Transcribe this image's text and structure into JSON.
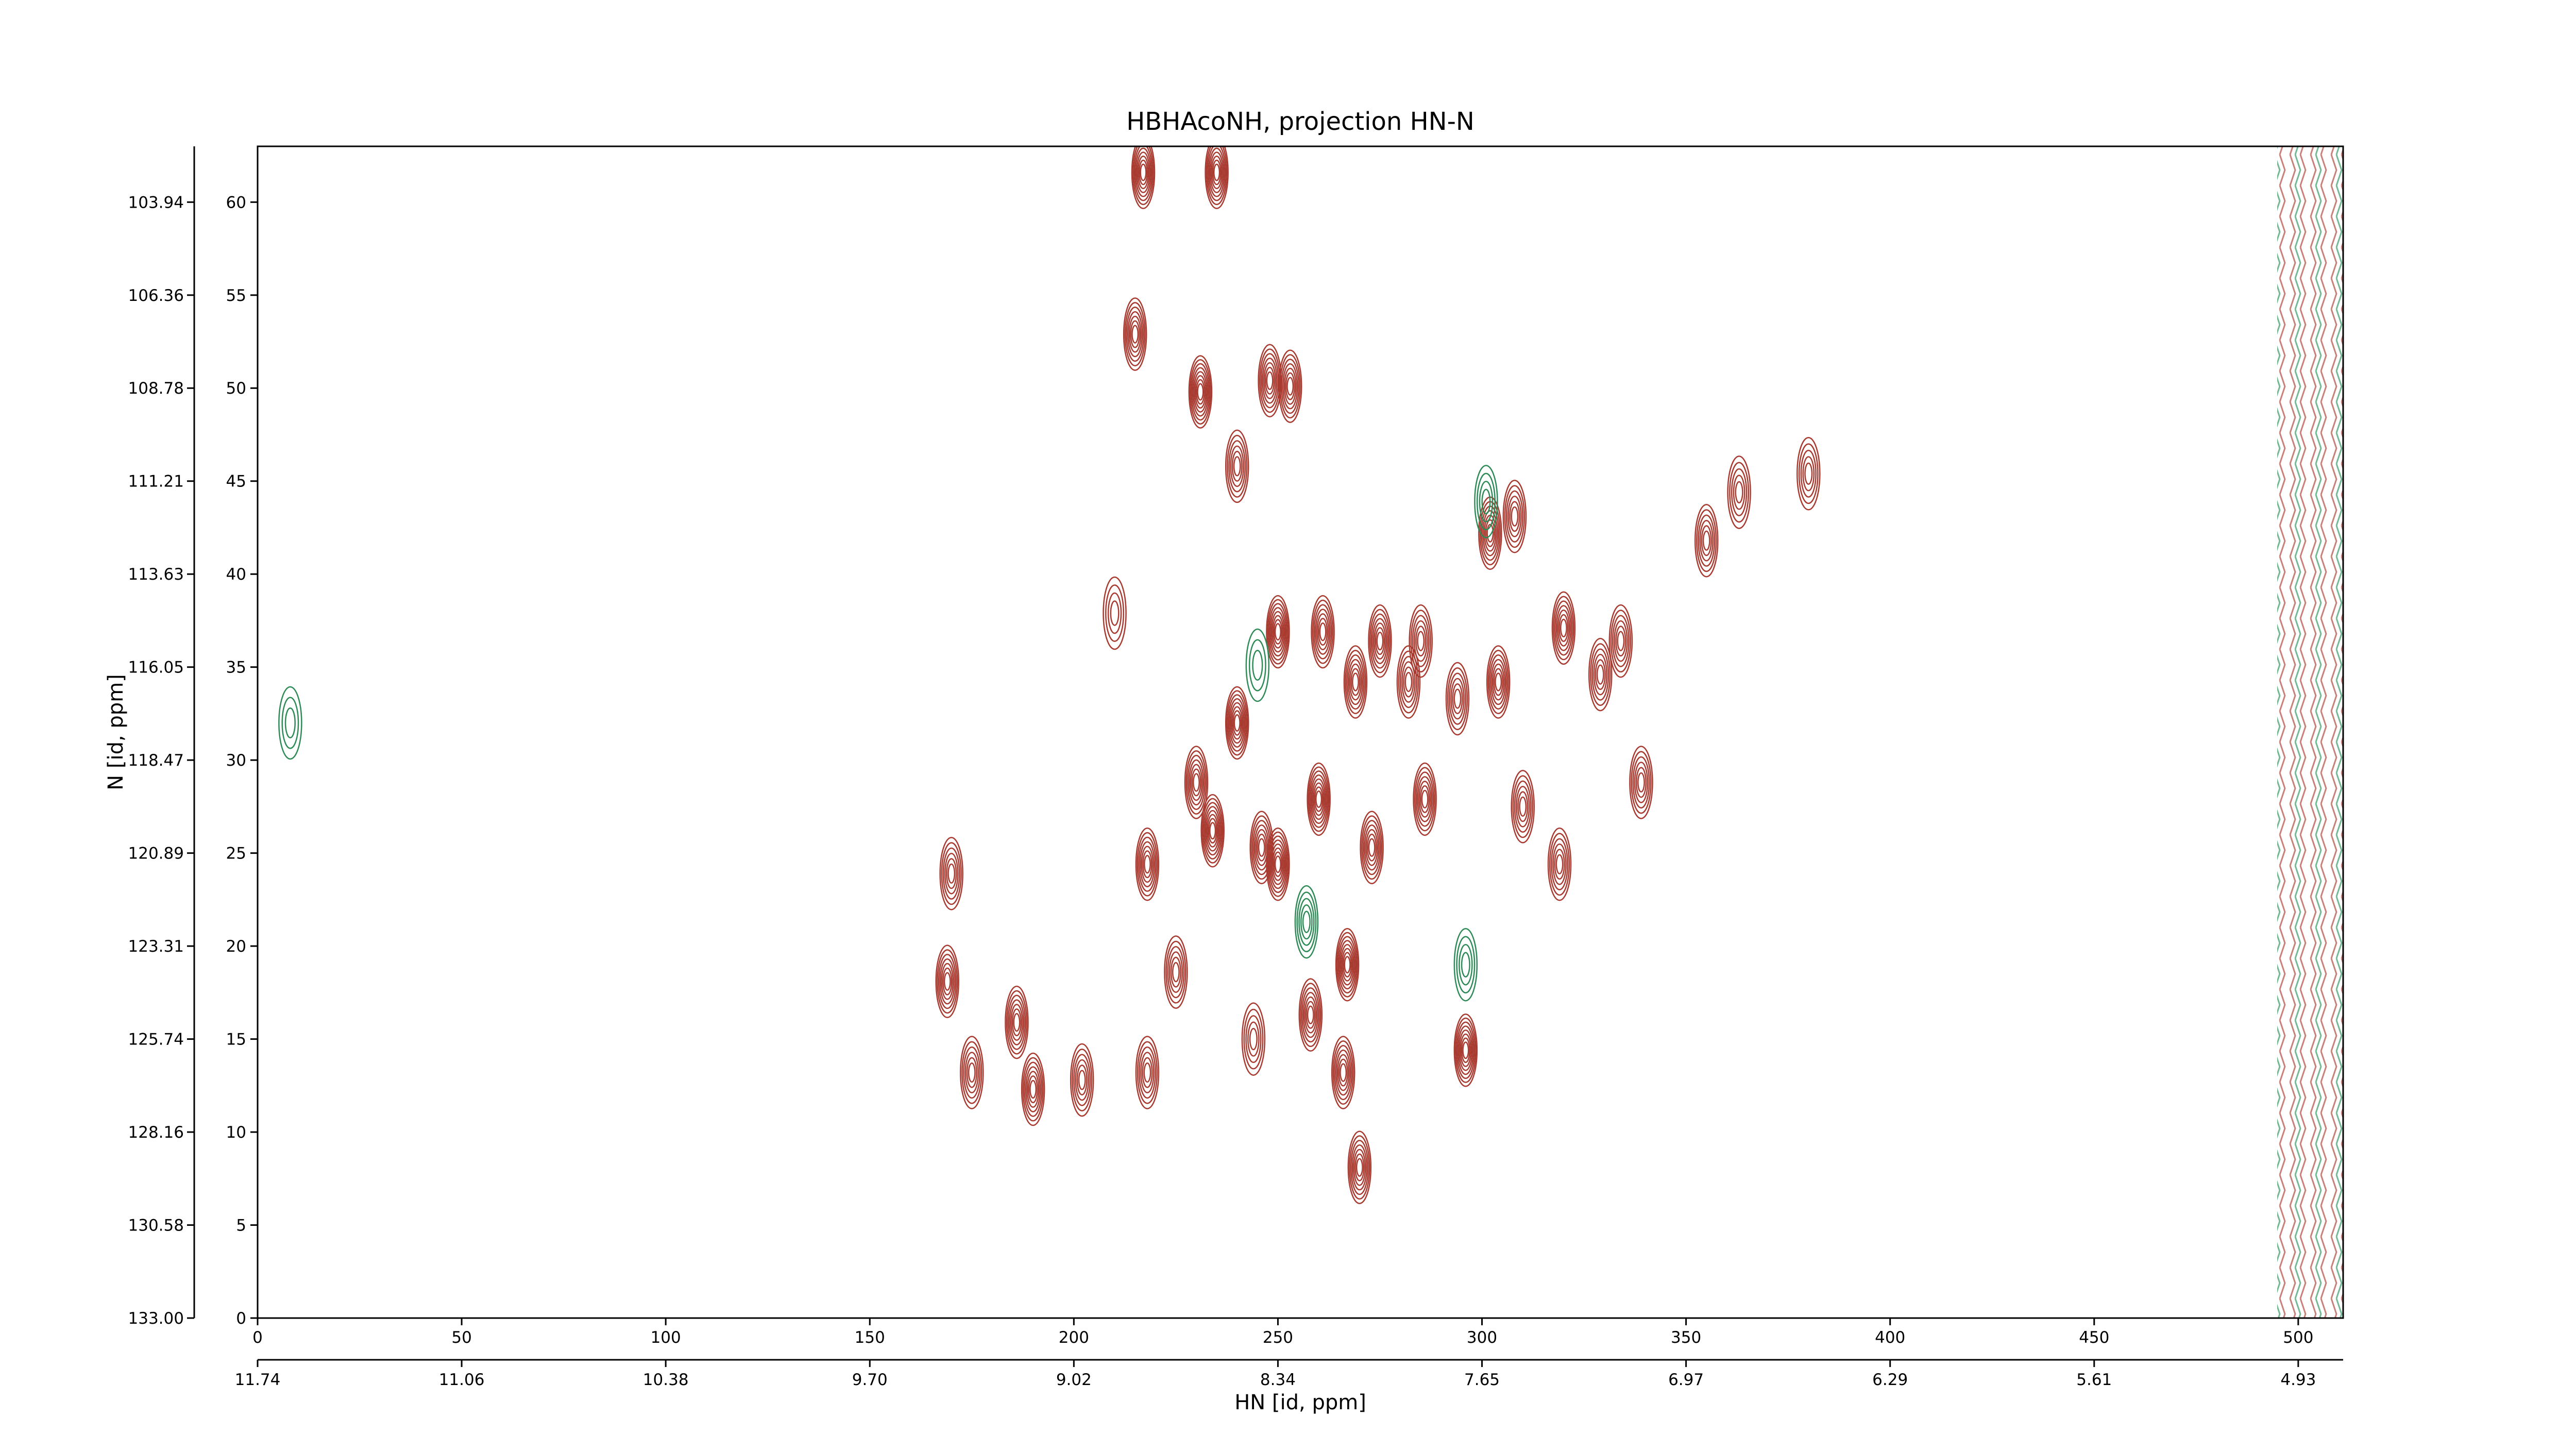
{
  "chart_data": {
    "type": "contour",
    "title": "HBHAcoNH, projection HN-N",
    "xlabel": "HN [id, ppm]",
    "ylabel": "N [id, ppm]",
    "xlim": [
      0,
      511
    ],
    "ylim": [
      0,
      63
    ],
    "xticks": [
      0,
      50,
      100,
      150,
      200,
      250,
      300,
      350,
      400,
      450,
      500
    ],
    "yticks": [
      0,
      5,
      10,
      15,
      20,
      25,
      30,
      35,
      40,
      45,
      50,
      55,
      60
    ],
    "x2ticks": [
      {
        "value": 0,
        "label": "11.74"
      },
      {
        "value": 50,
        "label": "11.06"
      },
      {
        "value": 100,
        "label": "10.38"
      },
      {
        "value": 150,
        "label": "9.70"
      },
      {
        "value": 200,
        "label": "9.02"
      },
      {
        "value": 250,
        "label": "8.34"
      },
      {
        "value": 300,
        "label": "7.65"
      },
      {
        "value": 350,
        "label": "6.97"
      },
      {
        "value": 400,
        "label": "6.29"
      },
      {
        "value": 450,
        "label": "5.61"
      },
      {
        "value": 500,
        "label": "4.93"
      }
    ],
    "y2ticks": [
      {
        "value": 0,
        "label": "133.00"
      },
      {
        "value": 5,
        "label": "130.58"
      },
      {
        "value": 10,
        "label": "128.16"
      },
      {
        "value": 15,
        "label": "125.74"
      },
      {
        "value": 20,
        "label": "123.31"
      },
      {
        "value": 25,
        "label": "120.89"
      },
      {
        "value": 30,
        "label": "118.47"
      },
      {
        "value": 35,
        "label": "116.05"
      },
      {
        "value": 40,
        "label": "113.63"
      },
      {
        "value": 45,
        "label": "111.21"
      },
      {
        "value": 50,
        "label": "108.78"
      },
      {
        "value": 55,
        "label": "106.36"
      },
      {
        "value": 60,
        "label": "103.94"
      }
    ],
    "series": [
      {
        "color": "#a83a30",
        "x": [
          217,
          235,
          215,
          231,
          248,
          253,
          240,
          302,
          308,
          355,
          363,
          380,
          210,
          250,
          261,
          275,
          285,
          320,
          334,
          269,
          282,
          294,
          304,
          329,
          240,
          230,
          234,
          246,
          260,
          286,
          310,
          339,
          218,
          250,
          273,
          319,
          170,
          169,
          267,
          258,
          225,
          186,
          190,
          175,
          202,
          218,
          244,
          266,
          296,
          270
        ],
        "y": [
          61.6,
          61.6,
          52.9,
          49.8,
          50.4,
          50.1,
          45.8,
          42.2,
          43.1,
          41.8,
          44.4,
          45.4,
          37.9,
          36.9,
          36.9,
          36.4,
          36.4,
          37.1,
          36.4,
          34.2,
          34.2,
          33.3,
          34.2,
          34.6,
          32.0,
          28.8,
          26.2,
          25.3,
          27.9,
          27.9,
          27.5,
          28.8,
          24.4,
          24.4,
          25.3,
          24.4,
          23.9,
          18.1,
          19.0,
          16.3,
          18.6,
          15.9,
          12.3,
          13.2,
          12.8,
          13.2,
          15.0,
          13.2,
          14.4,
          8.1
        ],
        "levels": [
          8,
          8,
          7,
          8,
          7,
          7,
          6,
          7,
          6,
          6,
          5,
          5,
          4,
          8,
          7,
          7,
          6,
          7,
          6,
          7,
          6,
          6,
          7,
          6,
          8,
          7,
          8,
          7,
          8,
          7,
          6,
          6,
          7,
          8,
          7,
          6,
          6,
          7,
          8,
          7,
          6,
          7,
          7,
          6,
          6,
          6,
          5,
          7,
          8,
          7
        ]
      },
      {
        "color": "#2e8b57",
        "x": [
          301,
          257,
          296,
          245,
          8
        ],
        "y": [
          43.9,
          21.3,
          19.0,
          35.1,
          32.0
        ],
        "levels": [
          4,
          5,
          4,
          3,
          3
        ]
      }
    ]
  }
}
